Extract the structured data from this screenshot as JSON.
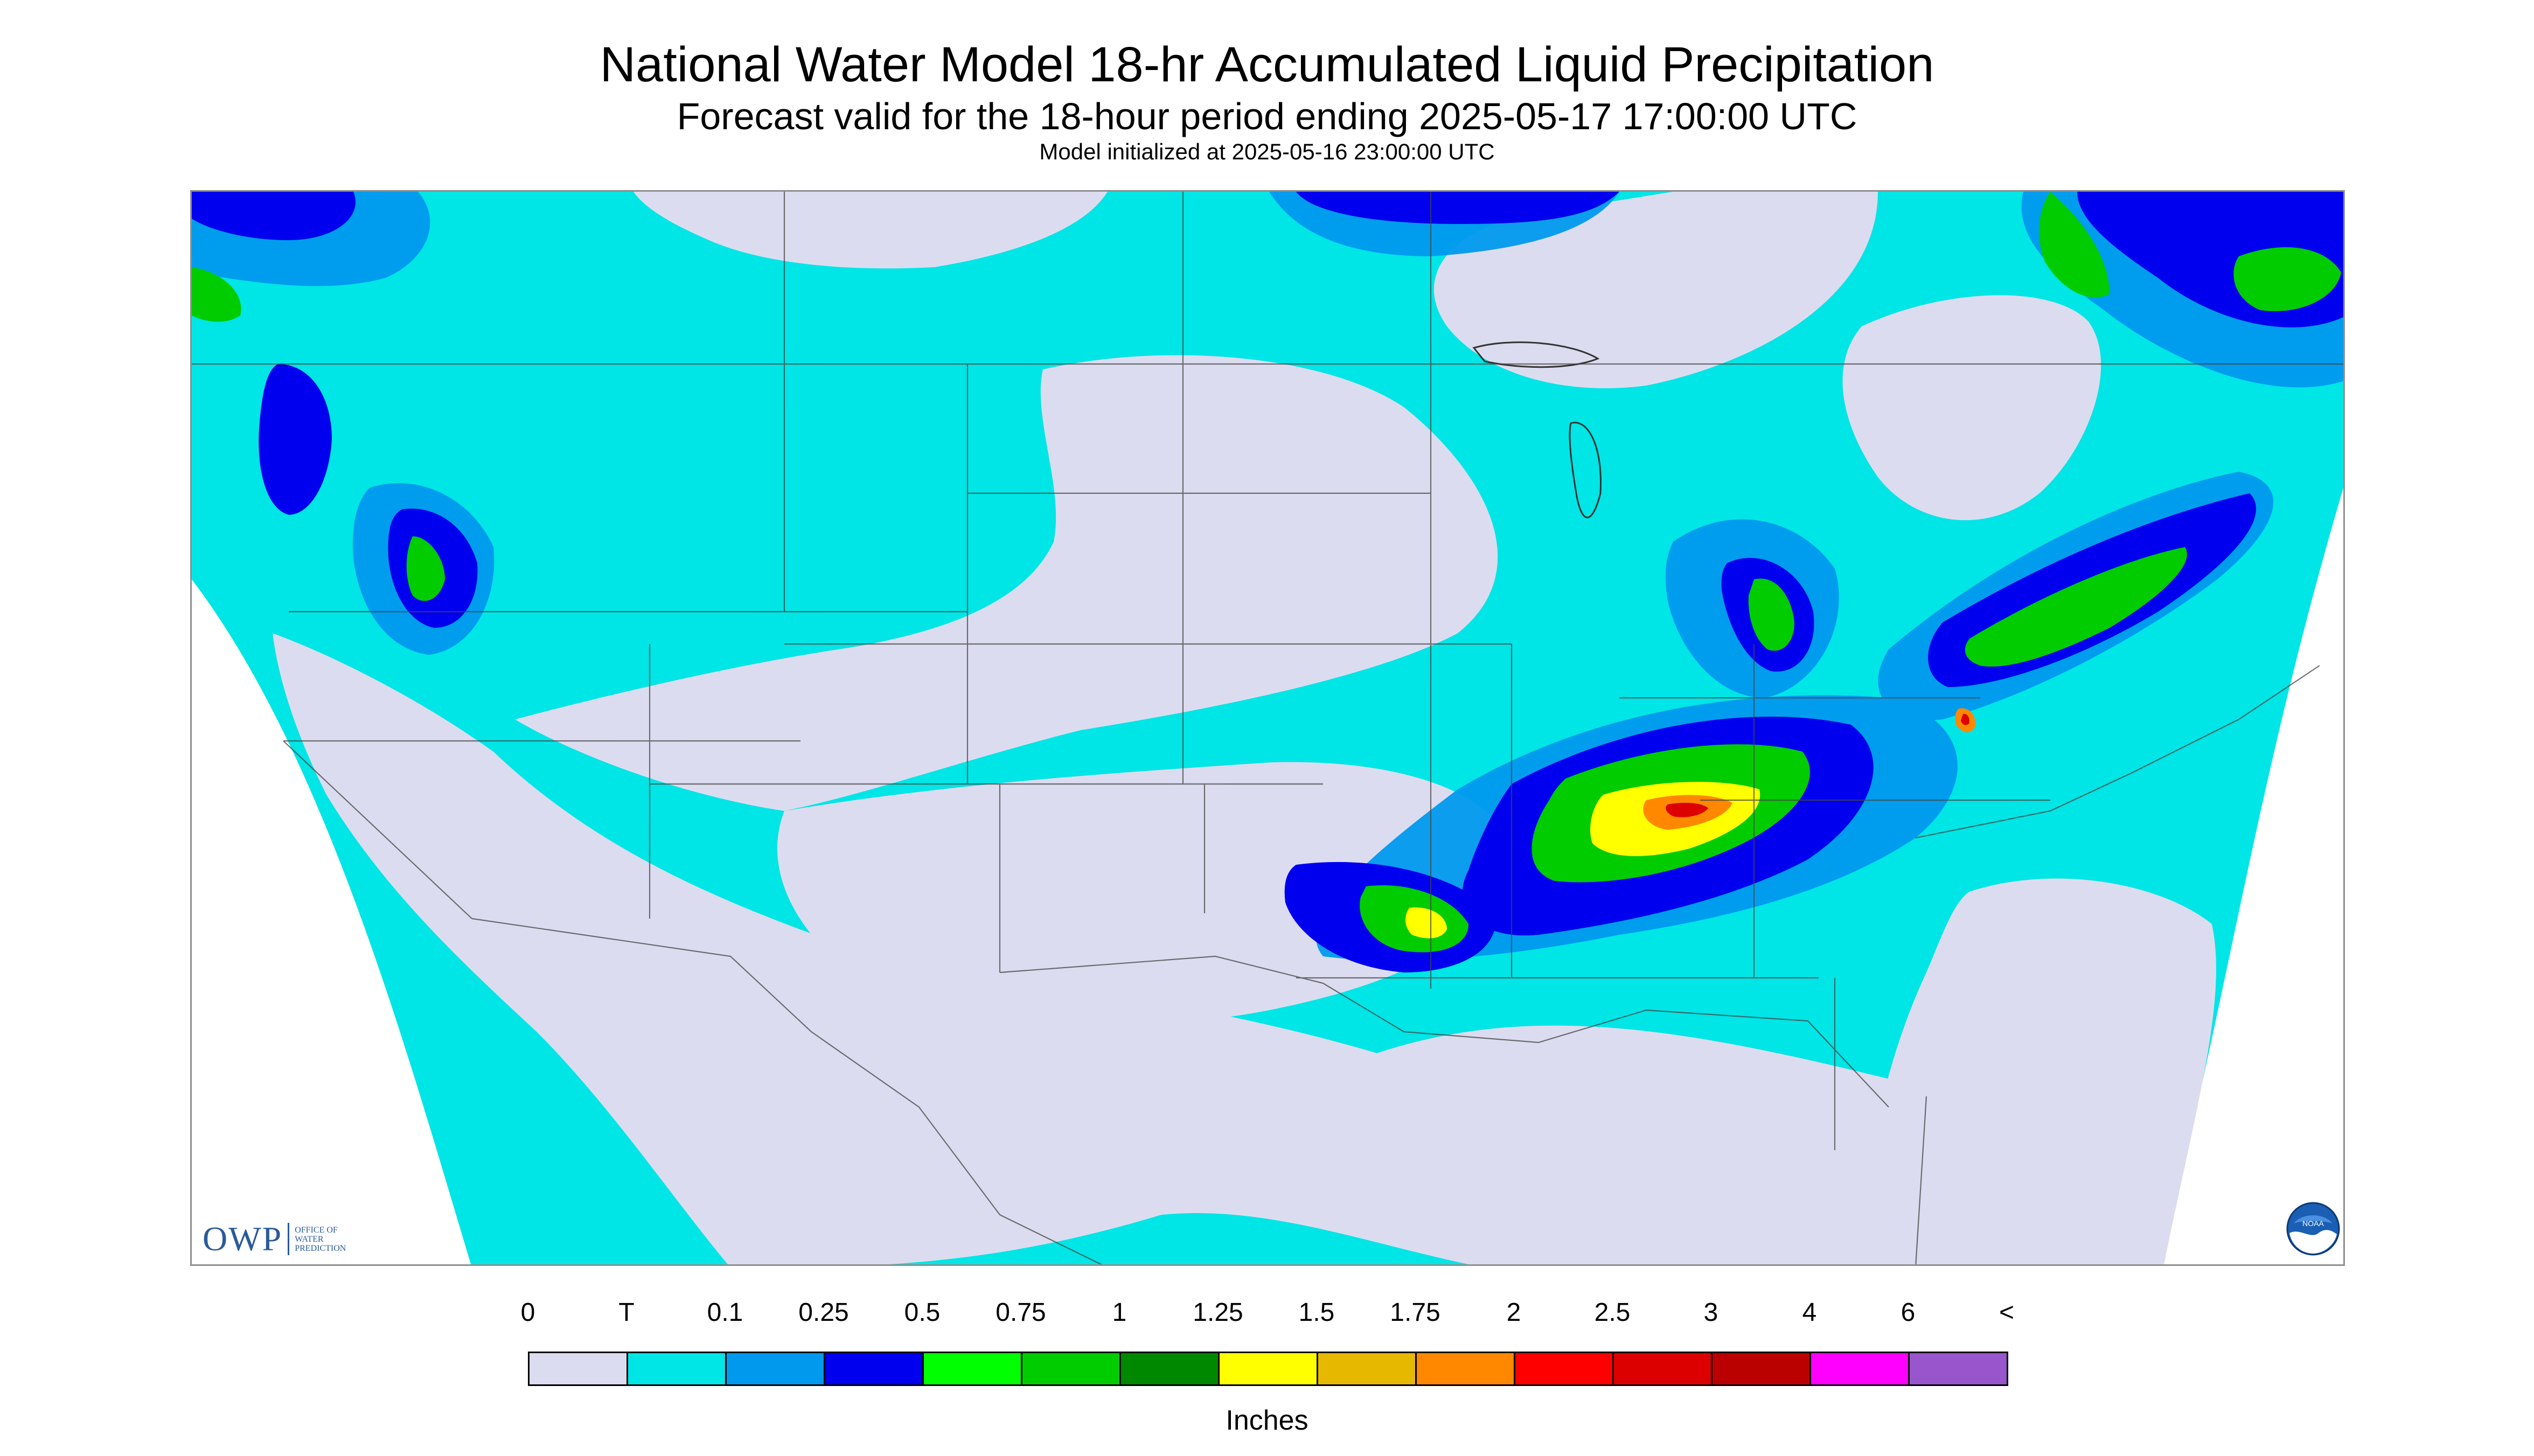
{
  "header": {
    "title": "National Water Model 18-hr Accumulated Liquid Precipitation",
    "subtitle": "Forecast valid for the 18-hour period ending 2025-05-17 17:00:00 UTC",
    "init_line": "Model initialized at 2025-05-16 23:00:00 UTC"
  },
  "map": {
    "region": "Continental United States",
    "background_no_precip_color": "#dcdcf0"
  },
  "logos": {
    "owp_letters": "OWP",
    "owp_sub": [
      "OFFICE OF",
      "WATER",
      "PREDICTION"
    ],
    "noaa": "NOAA"
  },
  "legend": {
    "tick_labels": [
      "0",
      "T",
      "0.1",
      "0.25",
      "0.5",
      "0.75",
      "1",
      "1.25",
      "1.5",
      "1.75",
      "2",
      "2.5",
      "3",
      "4",
      "6",
      "<"
    ],
    "colors": [
      "#dcdcf0",
      "#00e5e5",
      "#0099ee",
      "#0000ee",
      "#00ff00",
      "#00cc00",
      "#008800",
      "#ffff00",
      "#e6b800",
      "#ff8800",
      "#ff0000",
      "#dd0000",
      "#bb0000",
      "#ff00ff",
      "#9955cc"
    ],
    "units": "Inches"
  }
}
